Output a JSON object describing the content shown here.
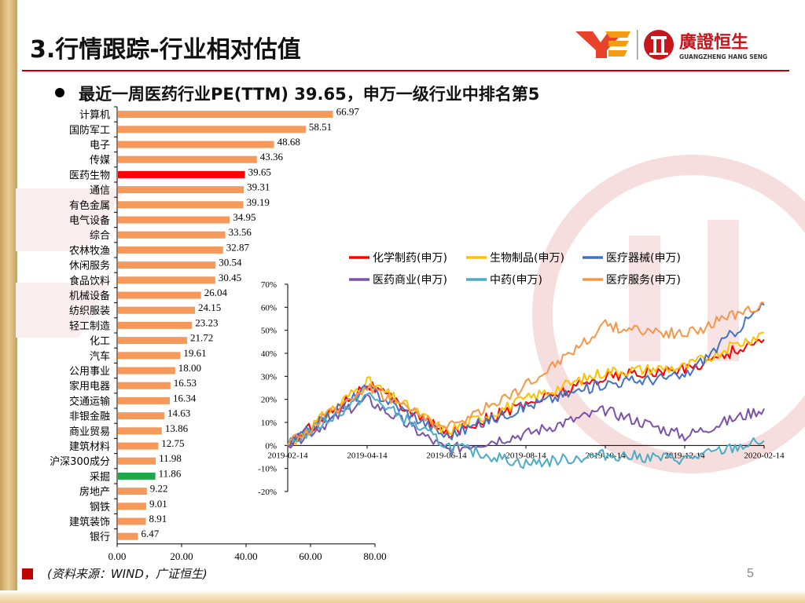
{
  "header": {
    "title": "3.行情跟踪-行业相对估值",
    "logo_text": "廣證恒生",
    "logo_subtext": "GUANGZHENG HANG SENG"
  },
  "bullet": {
    "text": "最近一周医药行业PE(TTM) 39.65，申万一级行业中排名第5"
  },
  "footer": {
    "source": "(资料来源：WIND，广证恒生)",
    "page": "5"
  },
  "colors": {
    "bar_default": "#f59a5a",
    "bar_highlight_red": "#ff0000",
    "bar_highlight_green": "#1ea84a",
    "accent": "#c00000"
  },
  "chart_data": [
    {
      "type": "bar",
      "orientation": "horizontal",
      "categories": [
        "计算机",
        "国防军工",
        "电子",
        "传媒",
        "医药生物",
        "通信",
        "有色金属",
        "电气设备",
        "综合",
        "农林牧渔",
        "休闲服务",
        "食品饮料",
        "机械设备",
        "纺织服装",
        "轻工制造",
        "化工",
        "汽车",
        "公用事业",
        "家用电器",
        "交通运输",
        "非银金融",
        "商业贸易",
        "建筑材料",
        "沪深300成分",
        "采掘",
        "房地产",
        "钢铁",
        "建筑装饰",
        "银行"
      ],
      "values": [
        66.97,
        58.51,
        48.68,
        43.36,
        39.65,
        39.31,
        39.19,
        34.95,
        33.56,
        32.87,
        30.54,
        30.45,
        26.04,
        24.15,
        23.23,
        21.72,
        19.61,
        18.0,
        16.53,
        16.34,
        14.63,
        13.86,
        12.75,
        11.98,
        11.86,
        9.22,
        9.01,
        8.91,
        6.47
      ],
      "value_labels": [
        "66.97",
        "58.51",
        "48.68",
        "43.36",
        "39.65",
        "39.31",
        "39.19",
        "34.95",
        "33.56",
        "32.87",
        "30.54",
        "30.45",
        "26.04",
        "24.15",
        "23.23",
        "21.72",
        "19.61",
        "18.00",
        "16.53",
        "16.34",
        "14.63",
        "13.86",
        "12.75",
        "11.98",
        "11.86",
        "9.22",
        "9.01",
        "8.91",
        "6.47"
      ],
      "highlight": {
        "医药生物": "red",
        "采掘": "green"
      },
      "xlim": [
        0,
        80
      ],
      "xticks": [
        "0.00",
        "20.00",
        "40.00",
        "60.00",
        "80.00"
      ]
    },
    {
      "type": "line",
      "x": [
        "2019-02-14",
        "2019-04-14",
        "2019-06-14",
        "2019-08-14",
        "2019-10-14",
        "2019-12-14",
        "2020-02-14"
      ],
      "ylim": [
        -20,
        70
      ],
      "yticks": [
        "70%",
        "60%",
        "50%",
        "40%",
        "30%",
        "20%",
        "10%",
        "0%",
        "-10%",
        "-20%"
      ],
      "series": [
        {
          "name": "化学制药(申万)",
          "color": "#ff0000",
          "values": [
            0,
            27,
            5,
            18,
            30,
            33,
            46
          ]
        },
        {
          "name": "生物制品(申万)",
          "color": "#ffc000",
          "values": [
            0,
            28,
            6,
            20,
            32,
            34,
            49
          ]
        },
        {
          "name": "医疗器械(申万)",
          "color": "#4472c4",
          "values": [
            0,
            25,
            4,
            17,
            27,
            30,
            61
          ]
        },
        {
          "name": "医药商业(申万)",
          "color": "#7b52ab",
          "values": [
            0,
            20,
            -2,
            5,
            15,
            4,
            16
          ]
        },
        {
          "name": "中药(申万)",
          "color": "#4bacc6",
          "values": [
            0,
            22,
            0,
            -8,
            -4,
            -6,
            2
          ]
        },
        {
          "name": "医疗服务(申万)",
          "color": "#f79646",
          "values": [
            0,
            26,
            7,
            26,
            52,
            48,
            62
          ]
        }
      ]
    }
  ]
}
